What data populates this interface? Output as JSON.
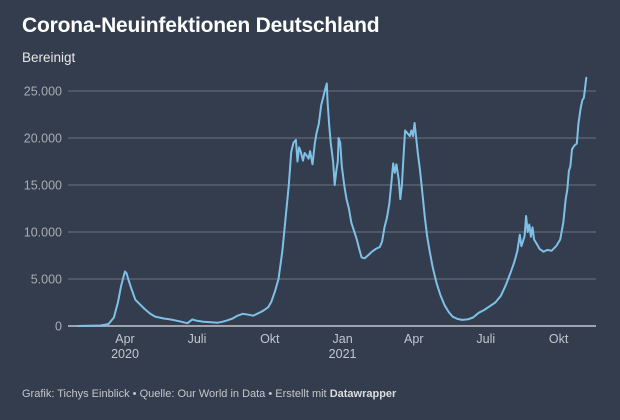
{
  "header": {
    "title": "Corona-Neuinfektionen Deutschland",
    "subtitle": "Bereinigt"
  },
  "footer": {
    "grafik": "Grafik: Tichys Einblick",
    "sep1": " • ",
    "quelle": "Quelle: Our World in Data",
    "sep2": " • ",
    "erstellt": "Erstellt mit ",
    "tool": "Datawrapper"
  },
  "colors": {
    "background": "#333d4d",
    "line": "#7fc0e8",
    "grid": "#5a6270",
    "axis": "#a0a4aa"
  },
  "chart_data": {
    "type": "line",
    "title": "Corona-Neuinfektionen Deutschland",
    "subtitle": "Bereinigt",
    "xlabel": "",
    "ylabel": "",
    "x_unit": "days since 2020-01-01",
    "xlim": [
      31,
      676
    ],
    "ylim": [
      0,
      25000
    ],
    "grid": true,
    "y_ticks": [
      {
        "value": 0,
        "label": "0"
      },
      {
        "value": 5000,
        "label": "5.000"
      },
      {
        "value": 10000,
        "label": "10.000"
      },
      {
        "value": 15000,
        "label": "15.000"
      },
      {
        "value": 20000,
        "label": "20.000"
      },
      {
        "value": 25000,
        "label": "25.000"
      }
    ],
    "x_ticks": [
      {
        "value": 91,
        "label": "Apr",
        "label2": "2020"
      },
      {
        "value": 182,
        "label": "Juli",
        "label2": ""
      },
      {
        "value": 274,
        "label": "Okt",
        "label2": ""
      },
      {
        "value": 366,
        "label": "Jan",
        "label2": "2021"
      },
      {
        "value": 456,
        "label": "Apr",
        "label2": ""
      },
      {
        "value": 547,
        "label": "Juli",
        "label2": ""
      },
      {
        "value": 639,
        "label": "Okt",
        "label2": ""
      }
    ],
    "series": [
      {
        "name": "Neuinfektionen",
        "points": [
          [
            31,
            0
          ],
          [
            60,
            50
          ],
          [
            70,
            200
          ],
          [
            77,
            900
          ],
          [
            82,
            2500
          ],
          [
            86,
            4200
          ],
          [
            89,
            5200
          ],
          [
            91,
            5800
          ],
          [
            93,
            5600
          ],
          [
            95,
            5000
          ],
          [
            99,
            4000
          ],
          [
            104,
            2800
          ],
          [
            110,
            2300
          ],
          [
            116,
            1800
          ],
          [
            123,
            1300
          ],
          [
            129,
            1000
          ],
          [
            140,
            800
          ],
          [
            148,
            700
          ],
          [
            160,
            500
          ],
          [
            167,
            350
          ],
          [
            170,
            300
          ],
          [
            173,
            500
          ],
          [
            176,
            700
          ],
          [
            182,
            550
          ],
          [
            190,
            450
          ],
          [
            200,
            400
          ],
          [
            208,
            350
          ],
          [
            214,
            450
          ],
          [
            220,
            600
          ],
          [
            227,
            800
          ],
          [
            233,
            1100
          ],
          [
            240,
            1300
          ],
          [
            247,
            1200
          ],
          [
            253,
            1100
          ],
          [
            258,
            1300
          ],
          [
            263,
            1500
          ],
          [
            267,
            1700
          ],
          [
            272,
            2000
          ],
          [
            276,
            2600
          ],
          [
            281,
            3800
          ],
          [
            285,
            5000
          ],
          [
            290,
            8000
          ],
          [
            294,
            11500
          ],
          [
            298,
            15000
          ],
          [
            301,
            18500
          ],
          [
            304,
            19500
          ],
          [
            307,
            19800
          ],
          [
            309,
            17500
          ],
          [
            311,
            19000
          ],
          [
            313,
            18600
          ],
          [
            316,
            17600
          ],
          [
            318,
            18400
          ],
          [
            320,
            18200
          ],
          [
            323,
            17800
          ],
          [
            325,
            18600
          ],
          [
            328,
            17200
          ],
          [
            331,
            19500
          ],
          [
            333,
            20500
          ],
          [
            336,
            21500
          ],
          [
            339,
            23500
          ],
          [
            342,
            24500
          ],
          [
            344,
            25200
          ],
          [
            346,
            25800
          ],
          [
            347,
            24000
          ],
          [
            349,
            21500
          ],
          [
            351,
            19500
          ],
          [
            354,
            17500
          ],
          [
            356,
            15000
          ],
          [
            358,
            16500
          ],
          [
            360,
            17500
          ],
          [
            361,
            20000
          ],
          [
            363,
            19500
          ],
          [
            365,
            17000
          ],
          [
            368,
            15000
          ],
          [
            371,
            13500
          ],
          [
            374,
            12500
          ],
          [
            377,
            11000
          ],
          [
            381,
            10000
          ],
          [
            384,
            9200
          ],
          [
            387,
            8200
          ],
          [
            390,
            7300
          ],
          [
            394,
            7200
          ],
          [
            398,
            7500
          ],
          [
            403,
            7900
          ],
          [
            408,
            8200
          ],
          [
            413,
            8400
          ],
          [
            416,
            9000
          ],
          [
            419,
            10500
          ],
          [
            422,
            11500
          ],
          [
            425,
            13000
          ],
          [
            428,
            15500
          ],
          [
            430,
            17300
          ],
          [
            432,
            16300
          ],
          [
            434,
            17200
          ],
          [
            437,
            15500
          ],
          [
            439,
            13500
          ],
          [
            441,
            15000
          ],
          [
            443,
            18000
          ],
          [
            445,
            20800
          ],
          [
            448,
            20500
          ],
          [
            451,
            20200
          ],
          [
            453,
            20800
          ],
          [
            455,
            20200
          ],
          [
            457,
            21600
          ],
          [
            459,
            20000
          ],
          [
            461,
            18500
          ],
          [
            464,
            16500
          ],
          [
            467,
            14000
          ],
          [
            470,
            11500
          ],
          [
            473,
            9500
          ],
          [
            476,
            8000
          ],
          [
            480,
            6200
          ],
          [
            485,
            4500
          ],
          [
            490,
            3200
          ],
          [
            495,
            2200
          ],
          [
            500,
            1500
          ],
          [
            505,
            1000
          ],
          [
            511,
            750
          ],
          [
            517,
            650
          ],
          [
            524,
            700
          ],
          [
            531,
            900
          ],
          [
            538,
            1400
          ],
          [
            545,
            1700
          ],
          [
            552,
            2100
          ],
          [
            559,
            2500
          ],
          [
            566,
            3200
          ],
          [
            572,
            4300
          ],
          [
            578,
            5600
          ],
          [
            583,
            6800
          ],
          [
            587,
            8000
          ],
          [
            590,
            9700
          ],
          [
            592,
            8500
          ],
          [
            594,
            9000
          ],
          [
            596,
            9600
          ],
          [
            598,
            11700
          ],
          [
            600,
            10000
          ],
          [
            602,
            10800
          ],
          [
            604,
            9500
          ],
          [
            606,
            10500
          ],
          [
            608,
            9200
          ],
          [
            611,
            8800
          ],
          [
            615,
            8200
          ],
          [
            620,
            7900
          ],
          [
            625,
            8100
          ],
          [
            630,
            8000
          ],
          [
            636,
            8500
          ],
          [
            641,
            9200
          ],
          [
            645,
            11000
          ],
          [
            648,
            13500
          ],
          [
            650,
            14500
          ],
          [
            652,
            16500
          ],
          [
            654,
            17000
          ],
          [
            656,
            18800
          ],
          [
            659,
            19200
          ],
          [
            662,
            19400
          ],
          [
            664,
            21500
          ],
          [
            667,
            23200
          ],
          [
            669,
            24000
          ],
          [
            671,
            24300
          ],
          [
            674,
            26400
          ]
        ]
      }
    ]
  }
}
